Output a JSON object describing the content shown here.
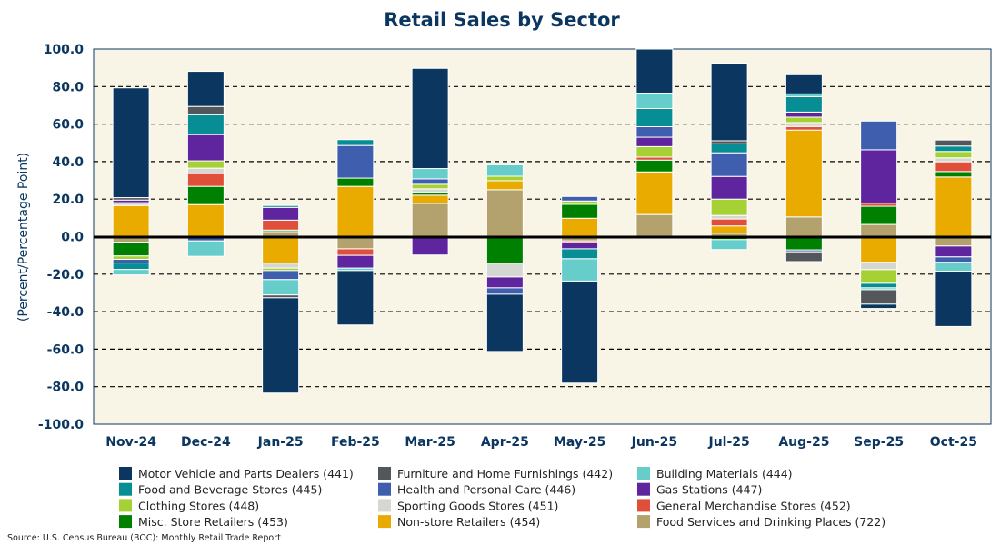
{
  "chart_data": {
    "type": "bar",
    "stacked": true,
    "title": "Retail Sales by Sector",
    "xlabel": "",
    "ylabel": "(Percent/Percentage Point)",
    "ylim": [
      -100,
      100
    ],
    "yticks": [
      100,
      80,
      60,
      40,
      20,
      0,
      -20,
      -40,
      -60,
      -80,
      -100
    ],
    "grid": true,
    "legend_position": "bottom",
    "categories": [
      "Nov-24",
      "Dec-24",
      "Jan-25",
      "Feb-25",
      "Mar-25",
      "Apr-25",
      "May-25",
      "Jun-25",
      "Jul-25",
      "Aug-25",
      "Sep-25",
      "Oct-25"
    ],
    "series": [
      {
        "name": "Motor Vehicle and Parts Dealers (441)",
        "color": "#0b3660",
        "values": [
          58.5,
          18.7,
          -50.8,
          -29.0,
          53.4,
          -30.5,
          -54.4,
          24.5,
          41.3,
          10.2,
          -2.3,
          -29.4
        ]
      },
      {
        "name": "Furniture and Home Furnishings (442)",
        "color": "#53565a",
        "values": [
          1.3,
          4.4,
          -1.5,
          0,
          0,
          0,
          0,
          0,
          1.6,
          -5.2,
          -7.7,
          3.2
        ]
      },
      {
        "name": "Building Materials (444)",
        "color": "#66cdca",
        "values": [
          -2.9,
          -8.2,
          -8.2,
          -1.3,
          5.5,
          6.1,
          -11.9,
          8.2,
          -5.3,
          1.5,
          -1.0,
          -4.8
        ]
      },
      {
        "name": "Food and Beverage Stores (445)",
        "color": "#078d94",
        "values": [
          -3.4,
          10.6,
          1.0,
          3.1,
          0,
          0,
          -5.3,
          9.7,
          4.8,
          8.2,
          -2.4,
          2.9
        ]
      },
      {
        "name": "Health and Personal Care (446)",
        "color": "#3f5fae",
        "values": [
          -2.0,
          -2.3,
          -4.8,
          17.4,
          2.9,
          -3.4,
          2.4,
          5.6,
          12.6,
          -1.0,
          15.3,
          -2.9
        ]
      },
      {
        "name": "Gas Stations (447)",
        "color": "#5e259f",
        "values": [
          1.4,
          14.0,
          6.8,
          -6.8,
          -9.8,
          -5.8,
          -3.4,
          5.0,
          12.1,
          2.7,
          28.5,
          -5.8
        ]
      },
      {
        "name": "Clothing Stores (448)",
        "color": "#a6d135",
        "values": [
          -1.8,
          3.9,
          -1.3,
          0,
          2.4,
          2.4,
          1.8,
          5.6,
          8.7,
          2.9,
          -7.3,
          3.4
        ]
      },
      {
        "name": "Sporting Goods Stores (451)",
        "color": "#d5d8d2",
        "values": [
          1.5,
          2.9,
          -2.6,
          0,
          1.9,
          -7.3,
          0,
          0,
          1.9,
          2.1,
          -3.9,
          2.1
        ]
      },
      {
        "name": "General Merchandise Stores (452)",
        "color": "#e04f3a",
        "values": [
          0,
          6.8,
          5.3,
          -3.5,
          0,
          0,
          -0.8,
          1.6,
          3.7,
          1.9,
          1.6,
          5.2
        ]
      },
      {
        "name": "Misc. Store Retailers (453)",
        "color": "#008000",
        "values": [
          -7.3,
          9.7,
          0.8,
          4.4,
          1.5,
          -14.2,
          7.4,
          6.3,
          -1.6,
          -7.1,
          9.7,
          2.9
        ]
      },
      {
        "name": "Non-store Retailers (454)",
        "color": "#eaab00",
        "values": [
          16.6,
          17.1,
          -14.2,
          26.8,
          4.4,
          4.8,
          9.8,
          22.7,
          3.9,
          46.3,
          -13.7,
          31.8
        ]
      },
      {
        "name": "Food Services and Drinking Places (722)",
        "color": "#b3a26d",
        "values": [
          -3.0,
          0,
          2.7,
          -6.5,
          17.7,
          25.0,
          -2.3,
          11.8,
          1.8,
          10.5,
          6.5,
          -5.0
        ]
      }
    ],
    "tick_labels": [
      "100.0",
      "80.0",
      "60.0",
      "40.0",
      "20.0",
      "0.0",
      "-20.0",
      "-40.0",
      "-60.0",
      "-80.0",
      "-100.0"
    ]
  },
  "source": "Source: U.S. Census Bureau (BOC): Monthly Retail Trade Report"
}
